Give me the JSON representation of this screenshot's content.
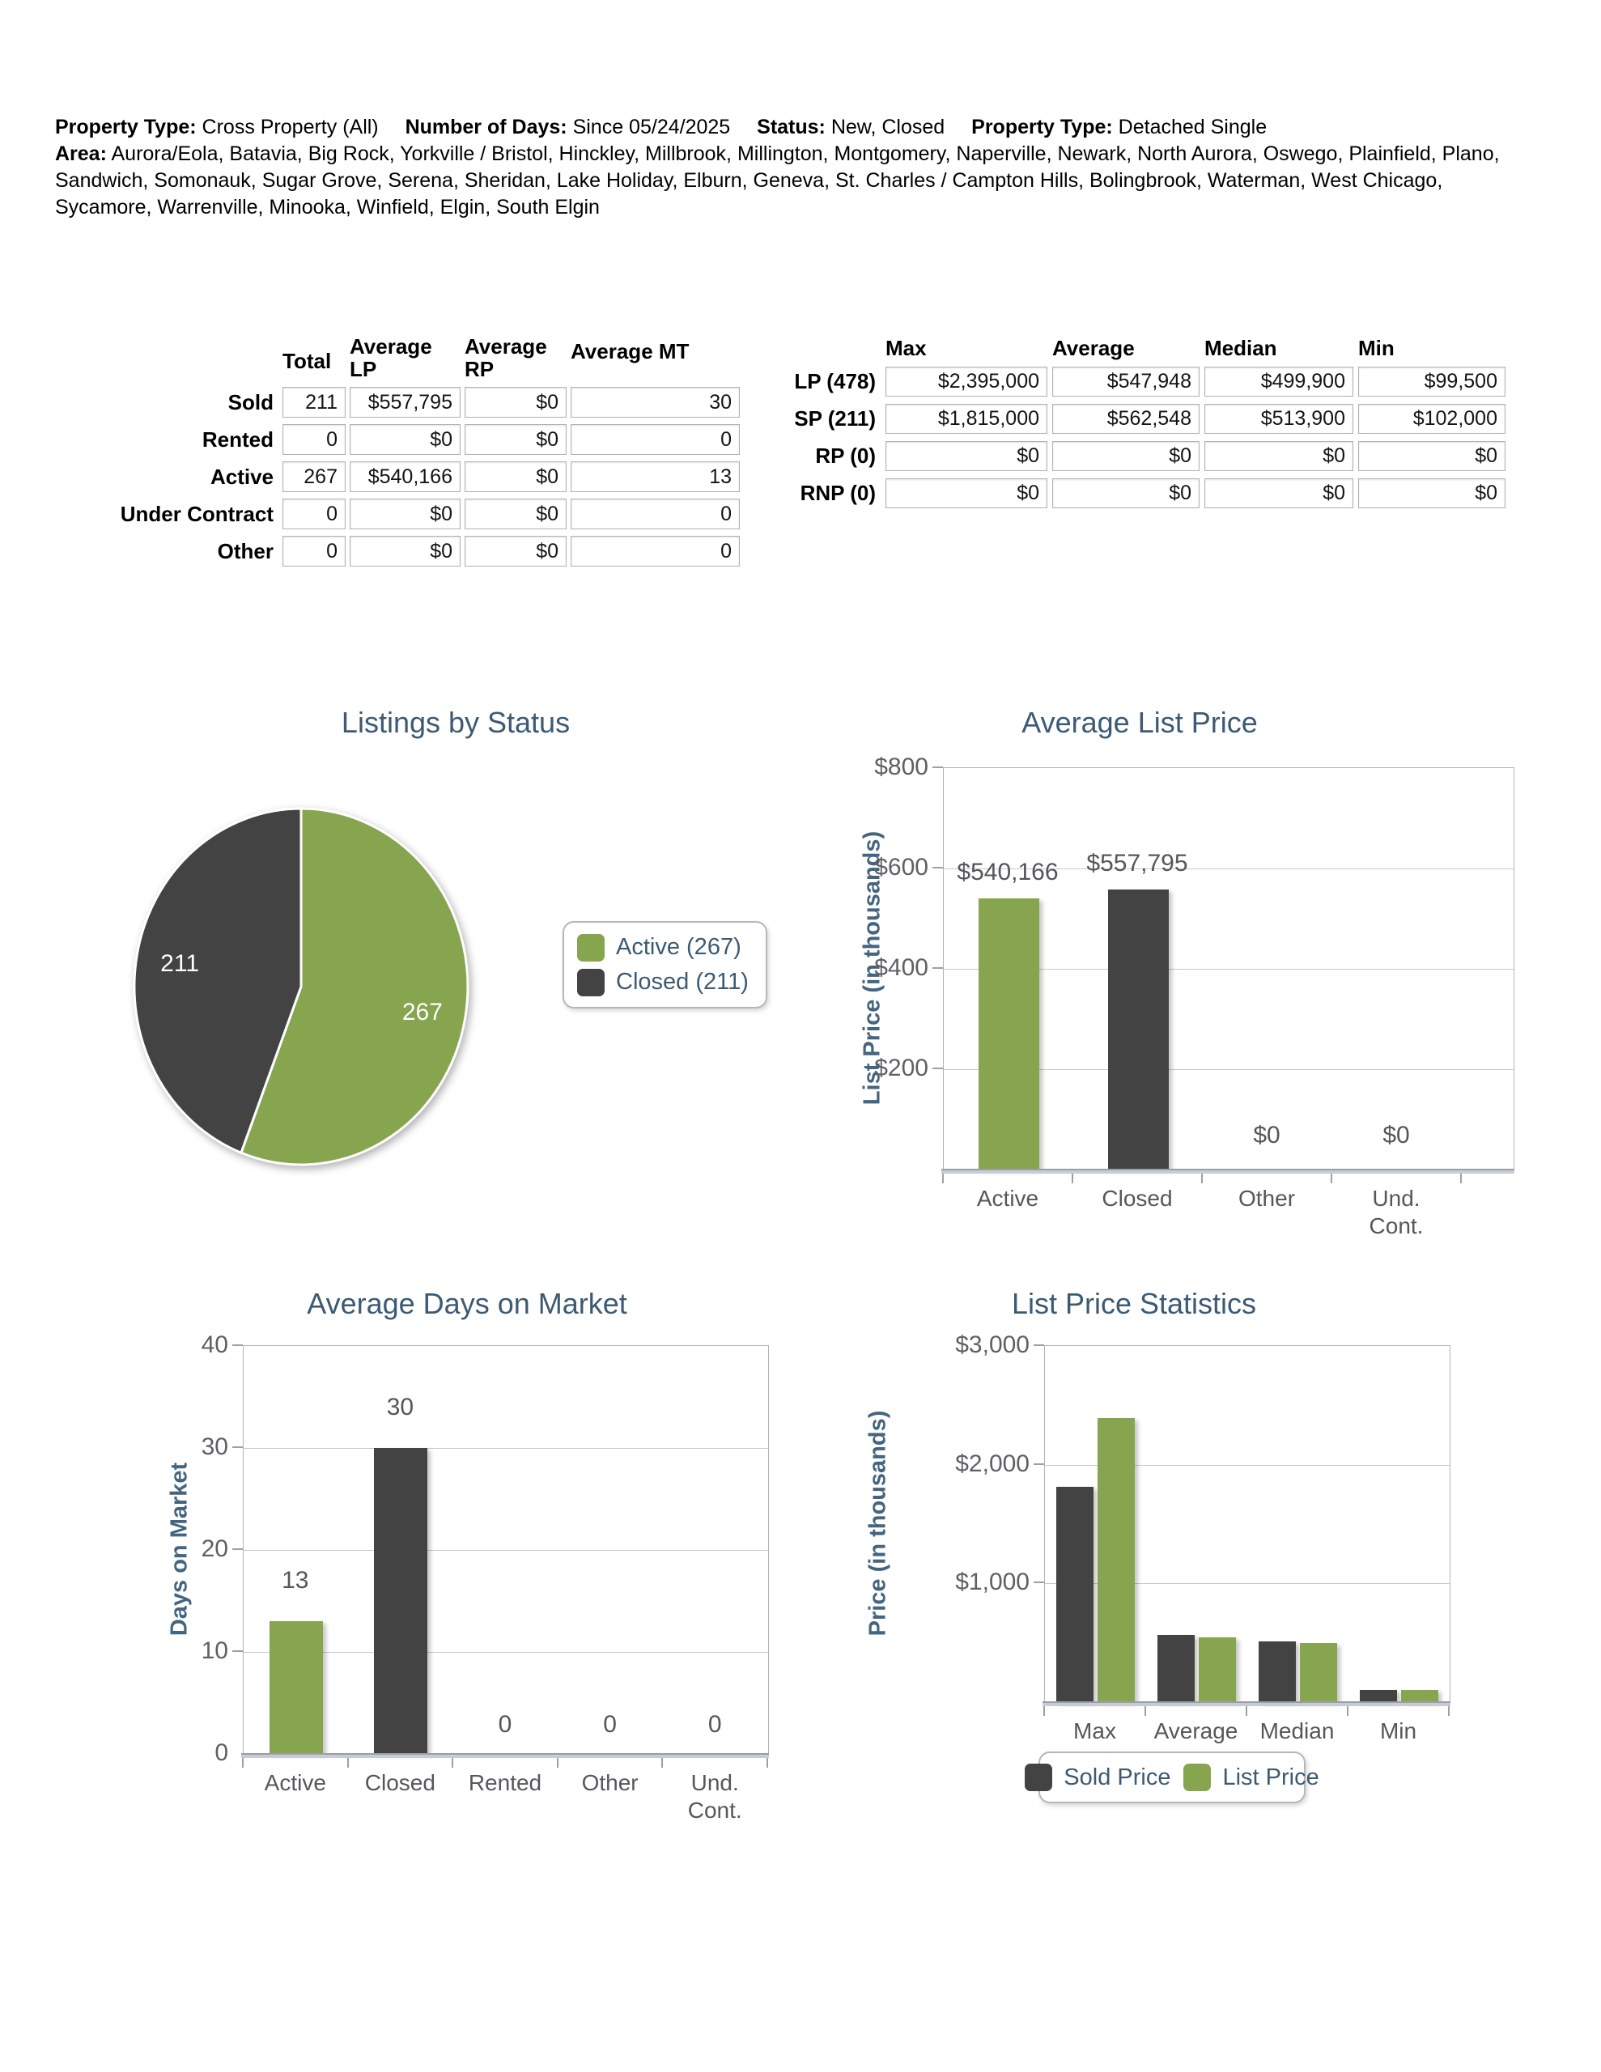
{
  "header": {
    "property_type_label": "Property Type:",
    "property_type_value": "Cross Property (All)",
    "days_label": "Number of Days:",
    "days_value": "Since 05/24/2025",
    "status_label": "Status:",
    "status_value": "New, Closed",
    "property_type2_label": "Property Type:",
    "property_type2_value": "Detached Single",
    "area_label": "Area:",
    "area_value": "Aurora/Eola, Batavia, Big Rock, Yorkville / Bristol, Hinckley, Millbrook, Millington, Montgomery, Naperville, Newark, North Aurora, Oswego, Plainfield, Plano, Sandwich, Somonauk, Sugar Grove, Serena, Sheridan, Lake Holiday, Elburn, Geneva, St. Charles / Campton Hills, Bolingbrook, Waterman, West Chicago, Sycamore, Warrenville, Minooka, Winfield, Elgin, South Elgin"
  },
  "summary_table": {
    "columns": [
      "Total",
      "Average LP",
      "Average RP",
      "Average MT"
    ],
    "rows": [
      {
        "label": "Sold",
        "values": [
          "211",
          "$557,795",
          "$0",
          "30"
        ]
      },
      {
        "label": "Rented",
        "values": [
          "0",
          "$0",
          "$0",
          "0"
        ]
      },
      {
        "label": "Active",
        "values": [
          "267",
          "$540,166",
          "$0",
          "13"
        ]
      },
      {
        "label": "Under Contract",
        "values": [
          "0",
          "$0",
          "$0",
          "0"
        ]
      },
      {
        "label": "Other",
        "values": [
          "0",
          "$0",
          "$0",
          "0"
        ]
      }
    ]
  },
  "stats_table": {
    "columns": [
      "Max",
      "Average",
      "Median",
      "Min"
    ],
    "rows": [
      {
        "label": "LP (478)",
        "values": [
          "$2,395,000",
          "$547,948",
          "$499,900",
          "$99,500"
        ]
      },
      {
        "label": "SP (211)",
        "values": [
          "$1,815,000",
          "$562,548",
          "$513,900",
          "$102,000"
        ]
      },
      {
        "label": "RP (0)",
        "values": [
          "$0",
          "$0",
          "$0",
          "$0"
        ]
      },
      {
        "label": "RNP (0)",
        "values": [
          "$0",
          "$0",
          "$0",
          "$0"
        ]
      }
    ]
  },
  "colors": {
    "green": "#87A54E",
    "dark": "#434343",
    "title_blue": "#3C5A73",
    "axis_blue": "#44657F"
  },
  "chart_data": [
    {
      "id": "listings_by_status",
      "type": "pie",
      "title": "Listings by Status",
      "slices": [
        {
          "label": "Active",
          "value": 267,
          "color_key": "green"
        },
        {
          "label": "Closed",
          "value": 211,
          "color_key": "dark"
        }
      ],
      "legend": [
        "Active (267)",
        "Closed (211)"
      ],
      "legend_position": "right"
    },
    {
      "id": "average_list_price",
      "type": "bar",
      "title": "Average List Price",
      "ylabel": "List Price (in thousands)",
      "ylim": [
        0,
        800
      ],
      "yticks": [
        {
          "label": "$800",
          "value": 800
        },
        {
          "label": "$600",
          "value": 600
        },
        {
          "label": "$400",
          "value": 400
        },
        {
          "label": "$200",
          "value": 200
        }
      ],
      "categories": [
        "Active",
        "Closed",
        "Other",
        "Und.\nCont."
      ],
      "values": [
        540.166,
        557.795,
        0,
        0
      ],
      "value_labels": [
        "$540,166",
        "$557,795",
        "$0",
        "$0"
      ],
      "bar_colors": [
        "green",
        "dark",
        "green",
        "dark"
      ],
      "grid": true
    },
    {
      "id": "average_days_on_market",
      "type": "bar",
      "title": "Average Days on Market",
      "ylabel": "Days on Market",
      "ylim": [
        0,
        40
      ],
      "yticks": [
        {
          "label": "40",
          "value": 40
        },
        {
          "label": "30",
          "value": 30
        },
        {
          "label": "20",
          "value": 20
        },
        {
          "label": "10",
          "value": 10
        },
        {
          "label": "0",
          "value": 0
        }
      ],
      "categories": [
        "Active",
        "Closed",
        "Rented",
        "Other",
        "Und.\nCont."
      ],
      "values": [
        13,
        30,
        0,
        0,
        0
      ],
      "value_labels": [
        "13",
        "30",
        "0",
        "0",
        "0"
      ],
      "bar_colors": [
        "green",
        "dark",
        "green",
        "dark",
        "green"
      ],
      "grid": true
    },
    {
      "id": "list_price_statistics",
      "type": "bar",
      "title": "List Price Statistics",
      "ylabel": "Price (in thousands)",
      "ylim": [
        0,
        3000
      ],
      "yticks": [
        {
          "label": "$3,000",
          "value": 3000
        },
        {
          "label": "$2,000",
          "value": 2000
        },
        {
          "label": "$1,000",
          "value": 1000
        }
      ],
      "categories": [
        "Max",
        "Average",
        "Median",
        "Min"
      ],
      "series": [
        {
          "name": "Sold Price",
          "color_key": "dark",
          "values": [
            1815,
            562.548,
            513.9,
            102
          ]
        },
        {
          "name": "List Price",
          "color_key": "green",
          "values": [
            2395,
            547.948,
            499.9,
            99.5
          ]
        }
      ],
      "legend": [
        "Sold Price",
        "List Price"
      ],
      "legend_position": "bottom",
      "grid": true
    }
  ]
}
